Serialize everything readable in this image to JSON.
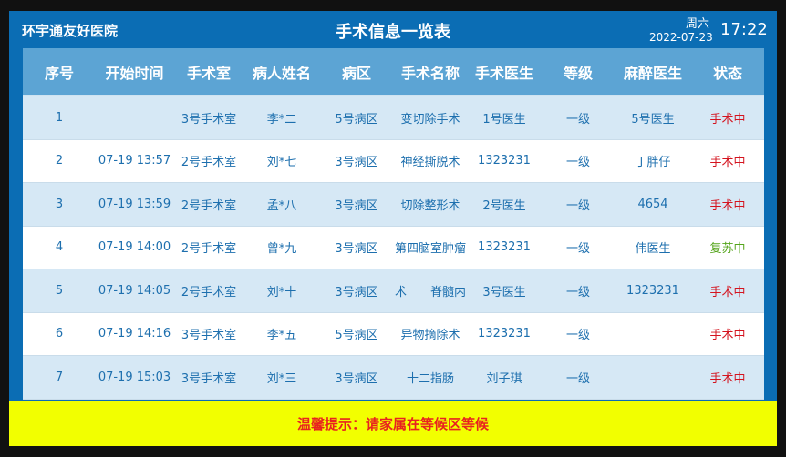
{
  "header": {
    "hospital": "环宇通友好医院",
    "title": "手术信息一览表",
    "weekday": "周六",
    "date": "2022-07-23",
    "time": "17:22"
  },
  "columns": [
    "序号",
    "开始时间",
    "手术室",
    "病人姓名",
    "病区",
    "手术名称",
    "手术医生",
    "等级",
    "麻醉医生",
    "状态"
  ],
  "rows": [
    [
      "1",
      "",
      "3号手术室",
      "李*二",
      "5号病区",
      "变切除手术",
      "1号医生",
      "一级",
      "5号医生",
      "手术中"
    ],
    [
      "2",
      "07-19 13:57",
      "2号手术室",
      "刘*七",
      "3号病区",
      "神经撕脱术",
      "1323231",
      "一级",
      "丁胖仔",
      "手术中"
    ],
    [
      "3",
      "07-19 13:59",
      "2号手术室",
      "孟*八",
      "3号病区",
      "切除整形术",
      "2号医生",
      "一级",
      "4654",
      "手术中"
    ],
    [
      "4",
      "07-19 14:00",
      "2号手术室",
      "曾*九",
      "3号病区",
      "第四脑室肿瘤",
      "1323231",
      "一级",
      "伟医生",
      "复苏中"
    ],
    [
      "5",
      "07-19 14:05",
      "2号手术室",
      "刘*十",
      "3号病区",
      "术　　脊髓内",
      "3号医生",
      "一级",
      "1323231",
      "手术中"
    ],
    [
      "6",
      "07-19 14:16",
      "3号手术室",
      "李*五",
      "5号病区",
      "异物摘除术",
      "1323231",
      "一级",
      "",
      "手术中"
    ],
    [
      "7",
      "07-19 15:03",
      "3号手术室",
      "刘*三",
      "3号病区",
      "十二指肠",
      "刘子琪",
      "一级",
      "",
      "手术中"
    ]
  ],
  "status_colors": {
    "手术中": "#d4141f",
    "复苏中": "#55a51c"
  },
  "footer": {
    "notice": "温馨提示：请家属在等候区等候"
  }
}
